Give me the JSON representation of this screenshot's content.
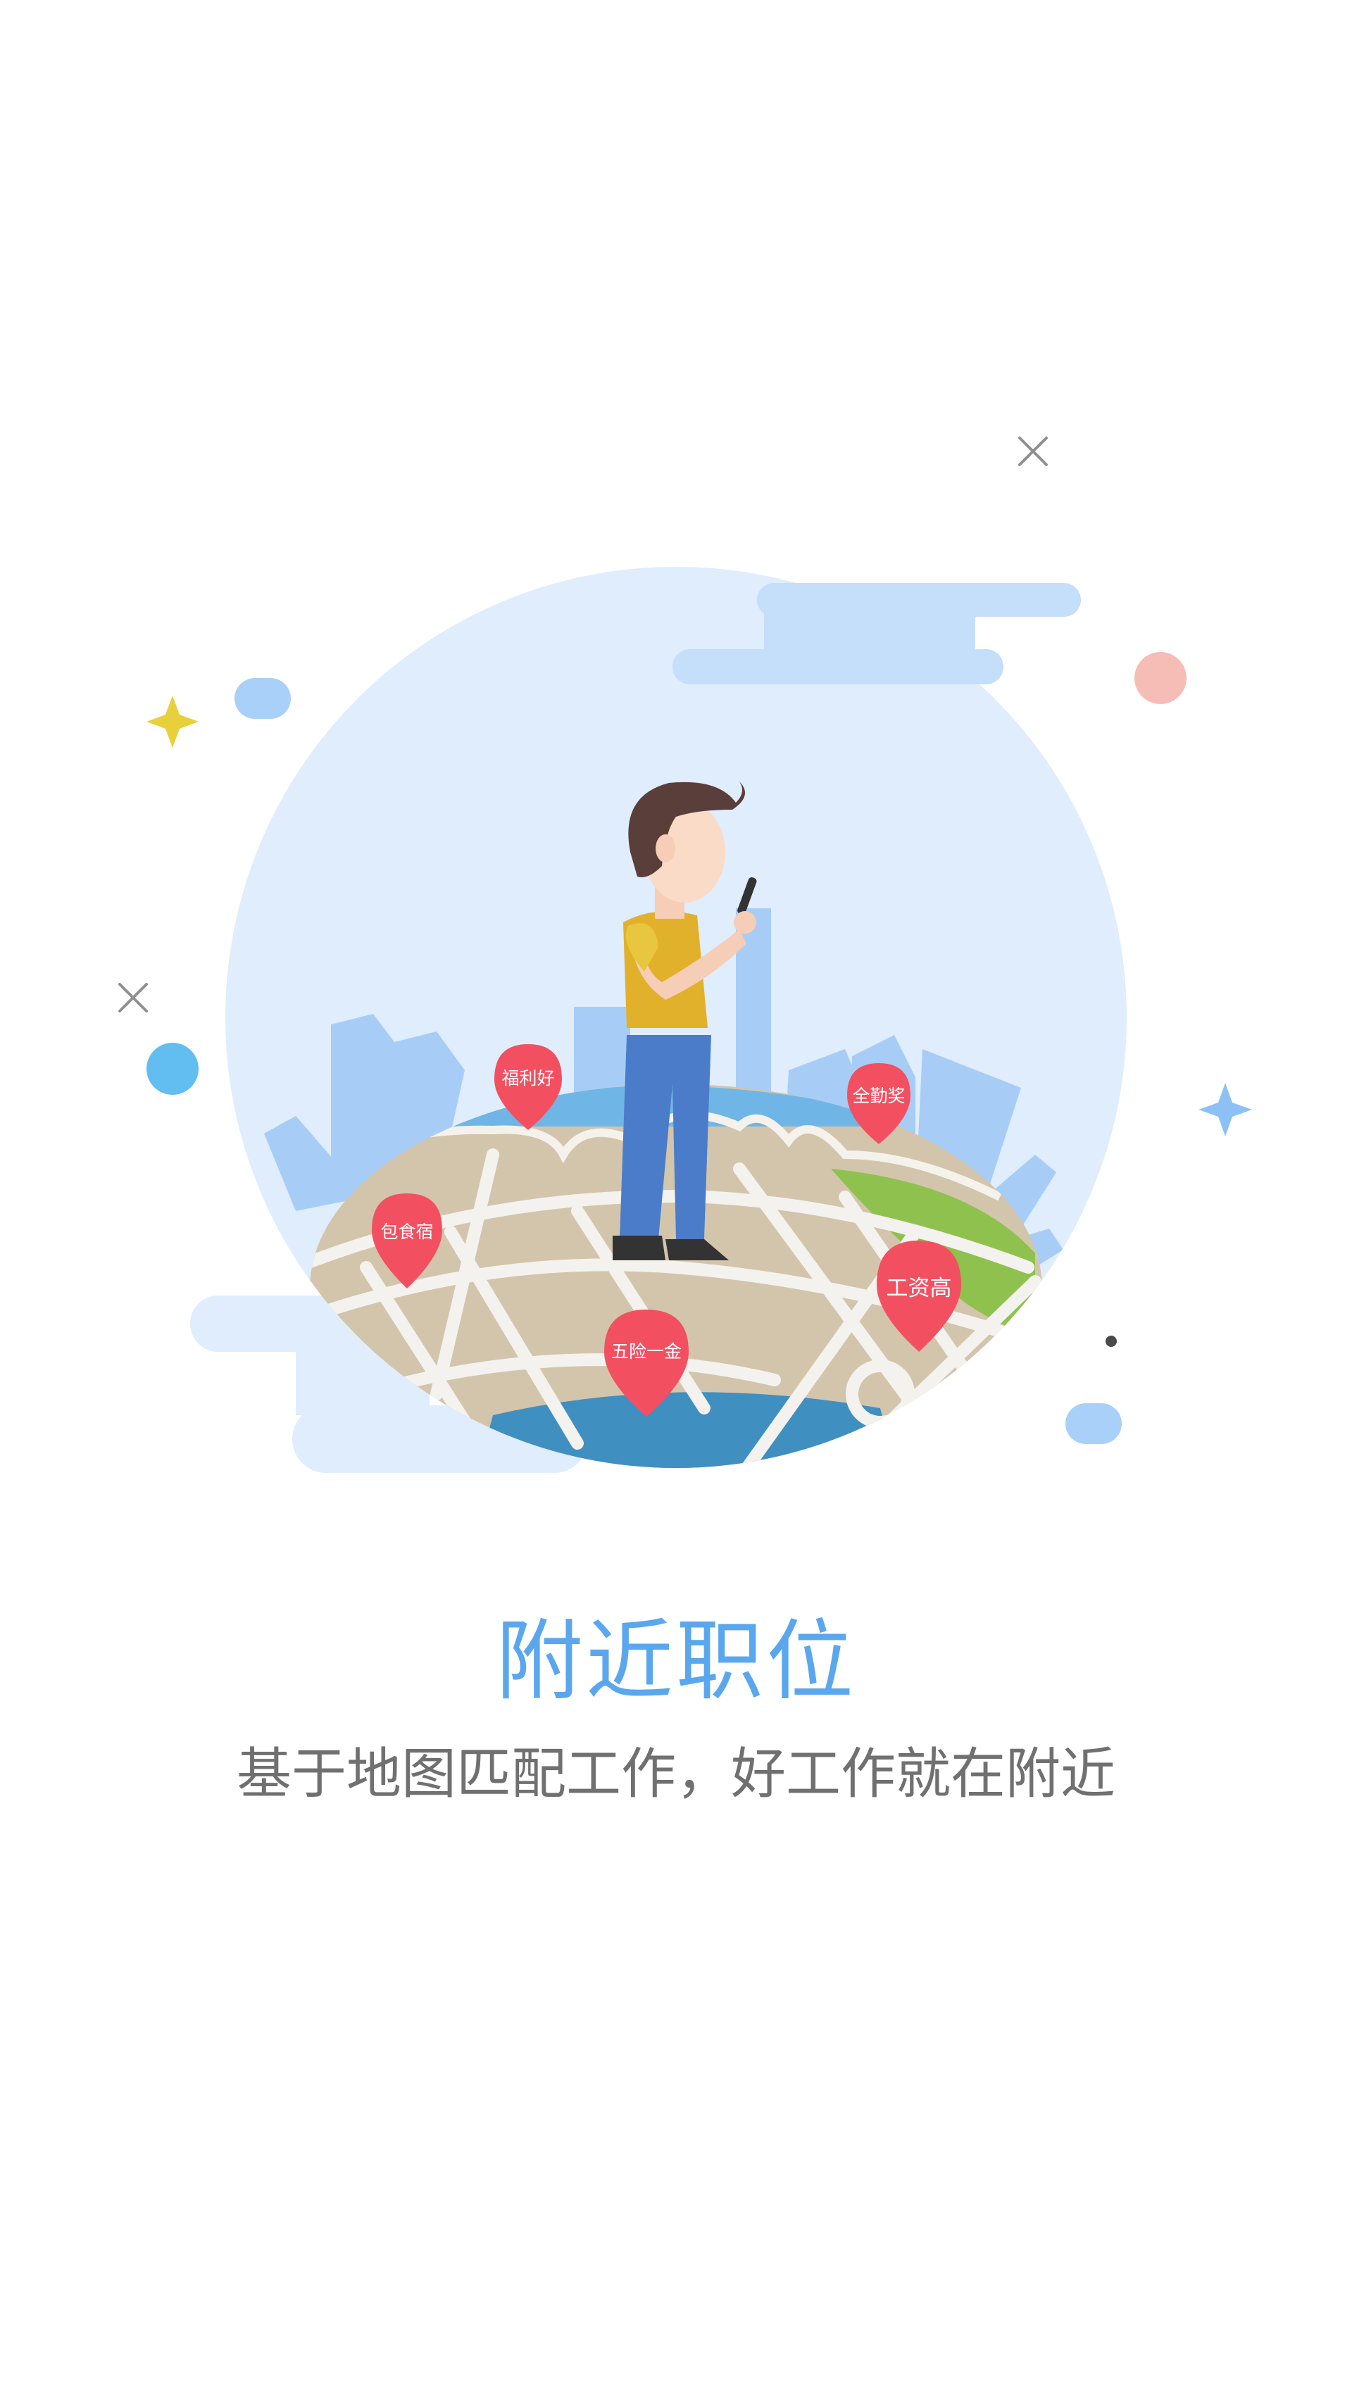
{
  "headline": {
    "title": "附近职位",
    "subtitle": "基于地图匹配工作，好工作就在附近"
  },
  "map_pins": [
    {
      "label": "福利好"
    },
    {
      "label": "全勤奖"
    },
    {
      "label": "包食宿"
    },
    {
      "label": "工资高"
    },
    {
      "label": "五险一金"
    }
  ],
  "colors": {
    "title": "#5aa7ee",
    "subtitle": "#707070",
    "circle": "#dfedfc",
    "pin": "#f25060",
    "shirt": "#e1b12c",
    "jeans": "#4a7cc9"
  }
}
